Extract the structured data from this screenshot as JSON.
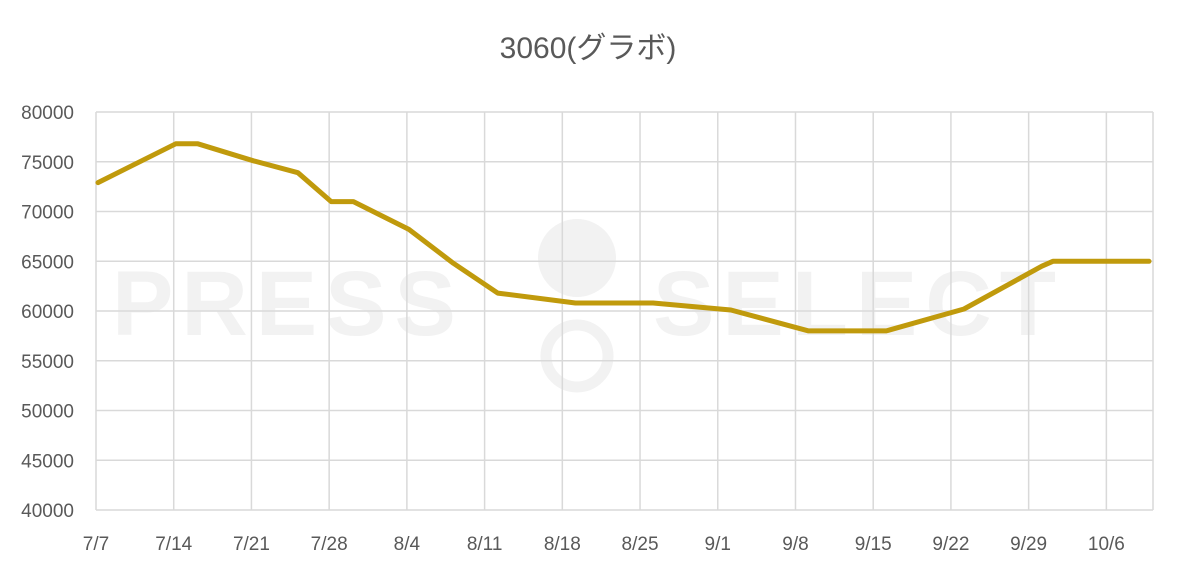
{
  "watermark": {
    "left_text": "PRESS",
    "right_text": "SELECT"
  },
  "colors": {
    "line": "#C09A0C",
    "grid": "#D9D9D9",
    "text": "#595959",
    "watermark": "#F2F2F2"
  },
  "chart_data": {
    "type": "line",
    "title": "3060(グラボ)",
    "xlabel": "",
    "ylabel": "",
    "ylim": [
      40000,
      80000
    ],
    "y_ticks": [
      "40000",
      "45000",
      "50000",
      "55000",
      "60000",
      "65000",
      "70000",
      "75000",
      "80000"
    ],
    "x_ticks": [
      "7/7",
      "7/14",
      "7/21",
      "7/28",
      "8/4",
      "8/11",
      "8/18",
      "8/25",
      "9/1",
      "9/8",
      "9/15",
      "9/22",
      "9/29",
      "10/6"
    ],
    "grid": true,
    "legend": "none",
    "x": [
      "7/7",
      "7/14",
      "7/16",
      "7/21",
      "7/25",
      "7/28",
      "7/30",
      "8/4",
      "8/8",
      "8/12",
      "8/19",
      "8/26",
      "9/2",
      "9/9",
      "9/16",
      "9/23",
      "9/30",
      "10/1",
      "10/10"
    ],
    "series": [
      {
        "values": [
          72900,
          76800,
          76800,
          75100,
          73900,
          71000,
          71000,
          68200,
          64800,
          61800,
          60800,
          60800,
          60100,
          58000,
          58000,
          60200,
          64500,
          65000,
          65000
        ]
      }
    ]
  }
}
